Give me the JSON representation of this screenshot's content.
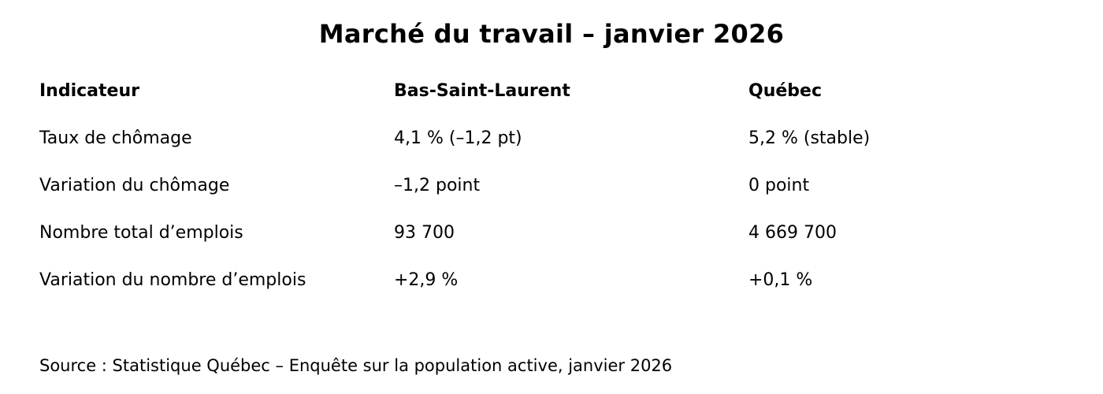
{
  "title": "Marché du travail – janvier 2026",
  "table": {
    "headers": [
      "Indicateur",
      "Bas-Saint-Laurent",
      "Québec"
    ],
    "rows": [
      {
        "indicator": "Taux de chômage",
        "bsl": "4,1 % (–1,2 pt)",
        "qc": "5,2 % (stable)"
      },
      {
        "indicator": "Variation du chômage",
        "bsl": "–1,2 point",
        "qc": "0 point"
      },
      {
        "indicator": "Nombre total d’emplois",
        "bsl": "93 700",
        "qc": "4 669 700"
      },
      {
        "indicator": "Variation du nombre d’emplois",
        "bsl": "+2,9 %",
        "qc": "+0,1 %"
      }
    ]
  },
  "source": "Source : Statistique Québec – Enquête sur la population active, janvier 2026",
  "colors": {
    "background": "#ffffff",
    "text": "#000000"
  }
}
